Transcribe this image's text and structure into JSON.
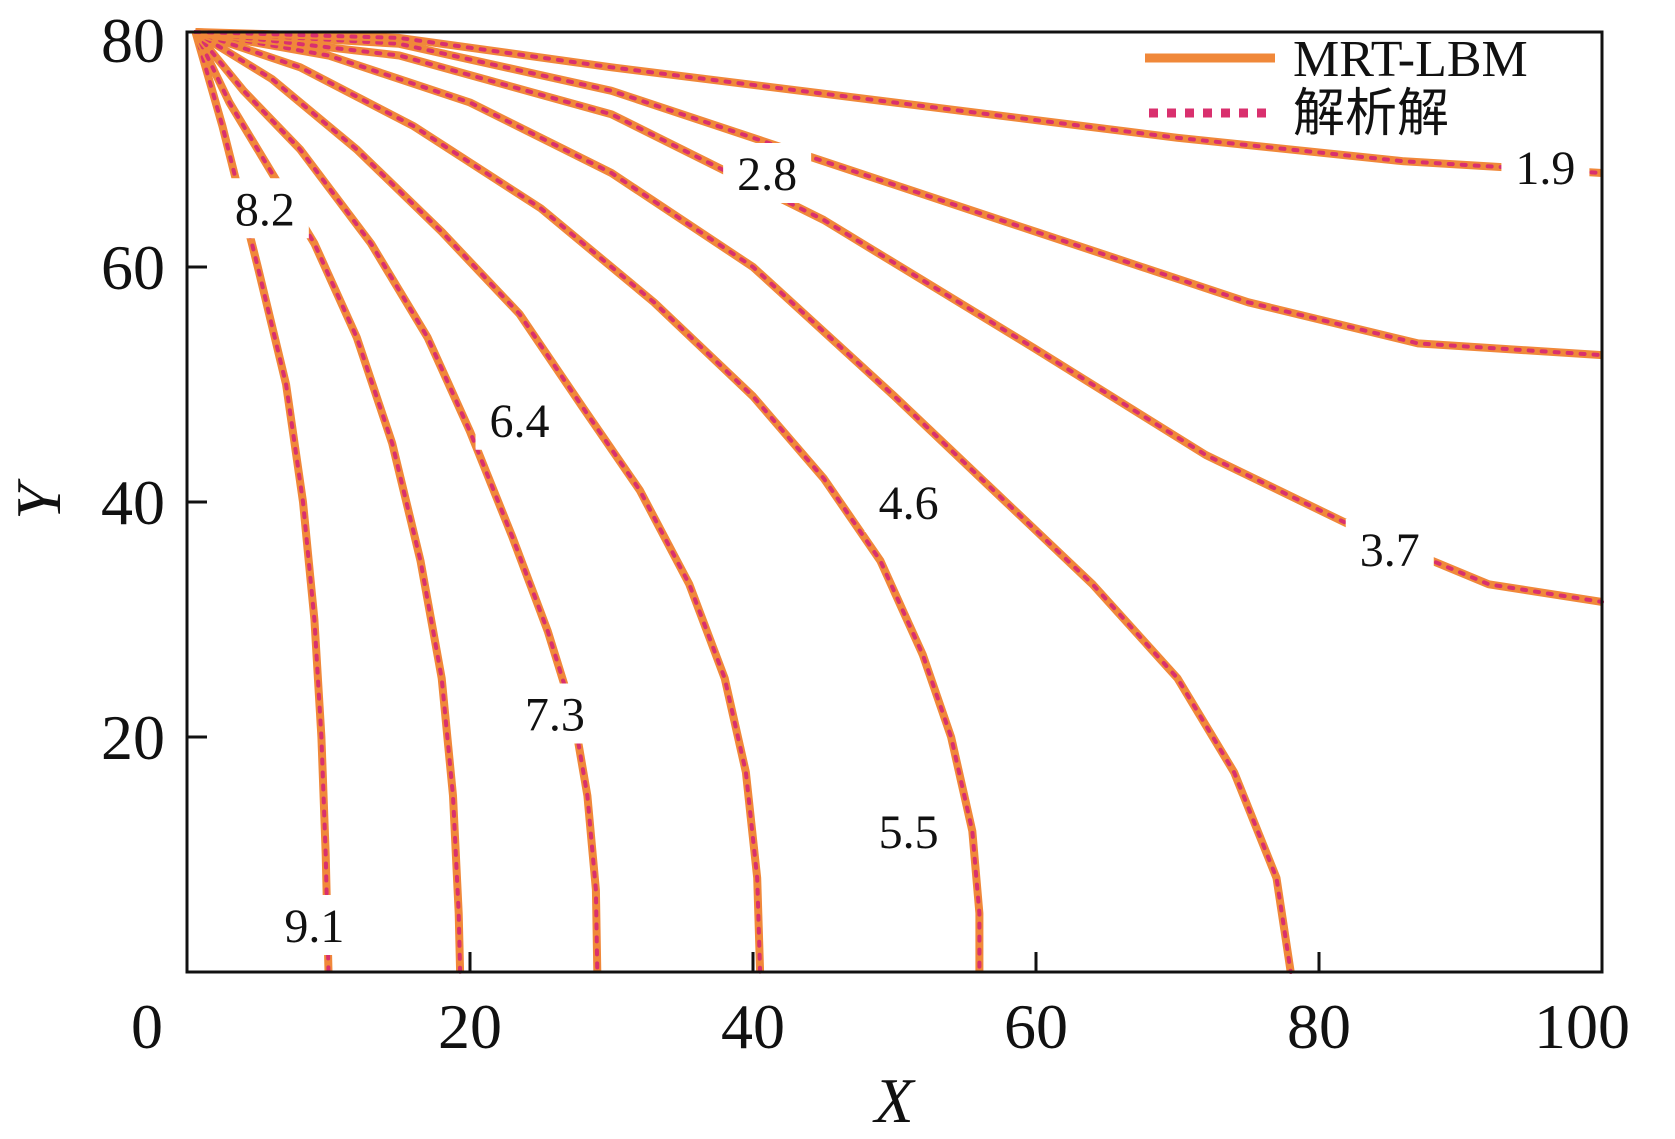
{
  "chart_data": {
    "type": "line",
    "subtype": "contour",
    "title": "",
    "xlabel": "X",
    "ylabel": "Y",
    "xlim": [
      0,
      100
    ],
    "ylim": [
      0,
      80
    ],
    "xticks": [
      "0",
      "20",
      "40",
      "60",
      "80",
      "100"
    ],
    "yticks": [
      "20",
      "40",
      "60",
      "80"
    ],
    "grid": false,
    "legend_position": "top-right",
    "colors": {
      "numerical": "#f0883a",
      "analytical": "#d9306e",
      "axis": "#111111"
    },
    "series": [
      {
        "name": "MRT-LBM",
        "style": "solid"
      },
      {
        "name": "解析解",
        "style": "dotted"
      }
    ],
    "contours": [
      {
        "label": "9.1",
        "label_at": [
          9,
          4
        ],
        "points": [
          [
            0.6,
            80
          ],
          [
            2.5,
            72
          ],
          [
            5,
            60
          ],
          [
            7,
            50
          ],
          [
            8.2,
            40
          ],
          [
            9,
            30
          ],
          [
            9.5,
            20
          ],
          [
            9.8,
            10
          ],
          [
            10,
            0
          ]
        ]
      },
      {
        "label": "8.2",
        "label_at": [
          5.5,
          65
        ],
        "points": [
          [
            0.6,
            80
          ],
          [
            3,
            74
          ],
          [
            6,
            68
          ],
          [
            9,
            62
          ],
          [
            12,
            54
          ],
          [
            14.5,
            45
          ],
          [
            16.5,
            35
          ],
          [
            18,
            25
          ],
          [
            18.8,
            15
          ],
          [
            19.2,
            5
          ],
          [
            19.3,
            0
          ]
        ]
      },
      {
        "label": "7.3",
        "label_at": [
          26,
          22
        ],
        "points": [
          [
            0.6,
            80
          ],
          [
            4,
            75
          ],
          [
            8,
            70
          ],
          [
            13,
            62
          ],
          [
            17,
            54
          ],
          [
            20,
            46
          ],
          [
            23,
            37
          ],
          [
            25.5,
            29
          ],
          [
            27.3,
            22
          ],
          [
            28.3,
            15
          ],
          [
            28.9,
            7
          ],
          [
            29,
            0
          ]
        ]
      },
      {
        "label": "6.4",
        "label_at": [
          23.5,
          47
        ],
        "points": [
          [
            0.6,
            80
          ],
          [
            6,
            76
          ],
          [
            12,
            70
          ],
          [
            18,
            63
          ],
          [
            23.5,
            56
          ],
          [
            28,
            48
          ],
          [
            32,
            41
          ],
          [
            35.5,
            33
          ],
          [
            38,
            25
          ],
          [
            39.5,
            17
          ],
          [
            40.3,
            8
          ],
          [
            40.5,
            0
          ]
        ]
      },
      {
        "label": "5.5",
        "label_at": [
          51,
          12
        ],
        "points": [
          [
            0.6,
            80
          ],
          [
            8,
            77
          ],
          [
            16,
            72
          ],
          [
            25,
            65
          ],
          [
            33,
            57
          ],
          [
            40,
            49
          ],
          [
            45,
            42
          ],
          [
            49,
            35
          ],
          [
            52,
            27
          ],
          [
            54,
            20
          ],
          [
            55.5,
            12
          ],
          [
            56,
            5
          ],
          [
            56,
            0
          ]
        ]
      },
      {
        "label": "4.6",
        "label_at": [
          51,
          40
        ],
        "points": [
          [
            0.6,
            80
          ],
          [
            10,
            78
          ],
          [
            20,
            74
          ],
          [
            30,
            68
          ],
          [
            40,
            60
          ],
          [
            50,
            49
          ],
          [
            57,
            41
          ],
          [
            64,
            33
          ],
          [
            70,
            25
          ],
          [
            74,
            17
          ],
          [
            77,
            8
          ],
          [
            78,
            0
          ]
        ]
      },
      {
        "label": "3.7",
        "label_at": [
          85,
          36
        ],
        "points": [
          [
            0.6,
            80
          ],
          [
            15,
            78
          ],
          [
            30,
            73
          ],
          [
            45,
            64
          ],
          [
            60,
            53
          ],
          [
            72,
            44
          ],
          [
            84,
            37
          ],
          [
            92,
            33
          ],
          [
            100,
            31.5
          ]
        ]
      },
      {
        "label": "2.8",
        "label_at": [
          41,
          68
        ],
        "points": [
          [
            0.6,
            80
          ],
          [
            15,
            79
          ],
          [
            30,
            75
          ],
          [
            45,
            69
          ],
          [
            60,
            63
          ],
          [
            75,
            57
          ],
          [
            87,
            53.5
          ],
          [
            100,
            52.5
          ]
        ]
      },
      {
        "label": "1.9",
        "label_at": [
          96,
          68.5
        ],
        "points": [
          [
            0.6,
            80
          ],
          [
            15,
            79.5
          ],
          [
            30,
            77
          ],
          [
            50,
            74
          ],
          [
            70,
            71
          ],
          [
            86,
            69
          ],
          [
            100,
            68
          ]
        ]
      }
    ]
  }
}
